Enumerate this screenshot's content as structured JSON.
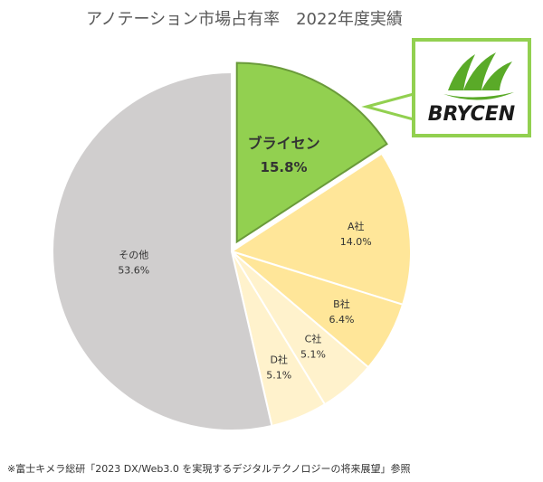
{
  "chart_data": {
    "type": "pie",
    "title": "アノテーション市場占有率　2022年度実績",
    "categories": [
      "ブライセン",
      "A社",
      "B社",
      "C社",
      "D社",
      "その他"
    ],
    "values": [
      15.8,
      14.0,
      6.4,
      5.1,
      5.1,
      53.6
    ],
    "value_labels": [
      "15.8%",
      "14.0%",
      "6.4%",
      "5.1%",
      "5.1%",
      "53.6%"
    ],
    "colors": [
      "#92d050",
      "#ffe699",
      "#ffe699",
      "#fff2cc",
      "#fff2cc",
      "#d0cece"
    ],
    "annotations": [
      "BRYCEN",
      "※富士キメラ総研「2023 DX/Web3.0 を実現するデジタルテクノロジーの将来展望」参照"
    ]
  }
}
